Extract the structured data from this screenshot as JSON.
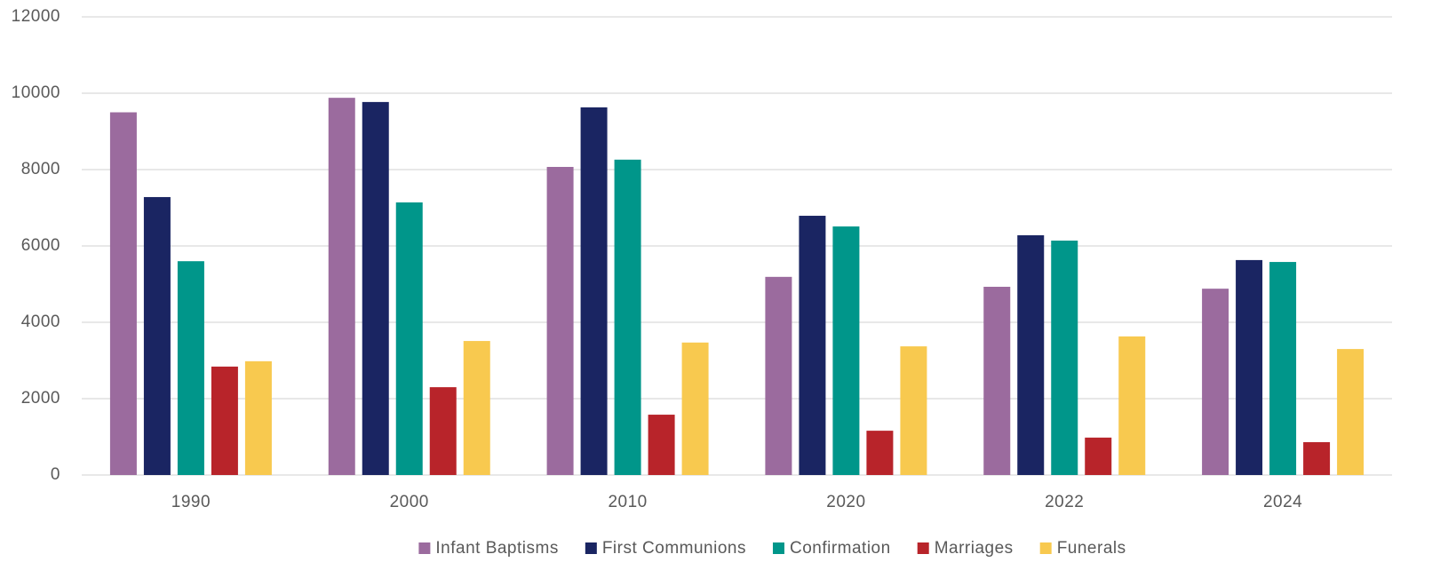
{
  "chart_data": {
    "type": "bar",
    "categories": [
      "1990",
      "2000",
      "2010",
      "2020",
      "2022",
      "2024"
    ],
    "series": [
      {
        "name": "Infant Baptisms",
        "color": "#9b6b9e",
        "values": [
          9500,
          9880,
          8070,
          5190,
          4930,
          4880
        ]
      },
      {
        "name": "First Communions",
        "color": "#1a2562",
        "values": [
          7280,
          9770,
          9630,
          6790,
          6280,
          5630
        ]
      },
      {
        "name": "Confirmation",
        "color": "#00968a",
        "values": [
          5600,
          7140,
          8260,
          6510,
          6140,
          5580
        ]
      },
      {
        "name": "Marriages",
        "color": "#b8242a",
        "values": [
          2840,
          2300,
          1580,
          1160,
          980,
          860
        ]
      },
      {
        "name": "Funerals",
        "color": "#f8c94f",
        "values": [
          2980,
          3510,
          3470,
          3370,
          3630,
          3300
        ]
      }
    ],
    "ylim": [
      0,
      12000
    ],
    "yticks": [
      0,
      2000,
      4000,
      6000,
      8000,
      10000,
      12000
    ],
    "grid": true,
    "legend": "bottom"
  }
}
